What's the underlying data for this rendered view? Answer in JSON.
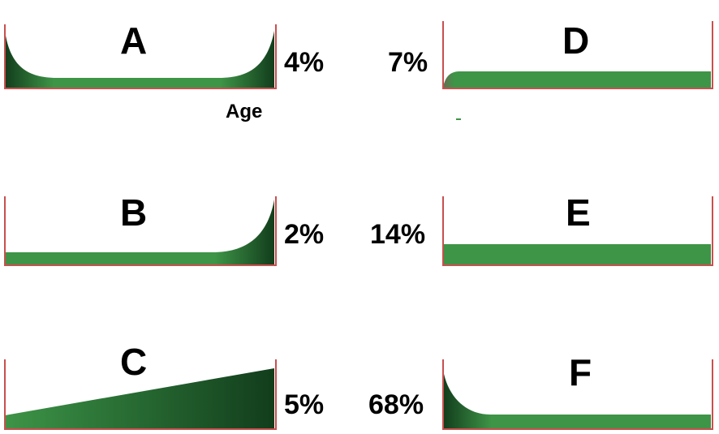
{
  "axis_label": "Age",
  "colors": {
    "axis": "#c8504f",
    "fill_green": "#3e9447",
    "fill_dark": "#123d1c"
  },
  "panels": [
    {
      "id": "A",
      "letter": "A",
      "percent": "4%",
      "shape": "u-shaped"
    },
    {
      "id": "B",
      "letter": "B",
      "percent": "2%",
      "shape": "rising-at-end"
    },
    {
      "id": "C",
      "letter": "C",
      "percent": "5%",
      "shape": "linear-increase"
    },
    {
      "id": "D",
      "letter": "D",
      "percent": "7%",
      "shape": "flat-with-small-start"
    },
    {
      "id": "E",
      "letter": "E",
      "percent": "14%",
      "shape": "flat"
    },
    {
      "id": "F",
      "letter": "F",
      "percent": "68%",
      "shape": "high-at-start"
    }
  ]
}
